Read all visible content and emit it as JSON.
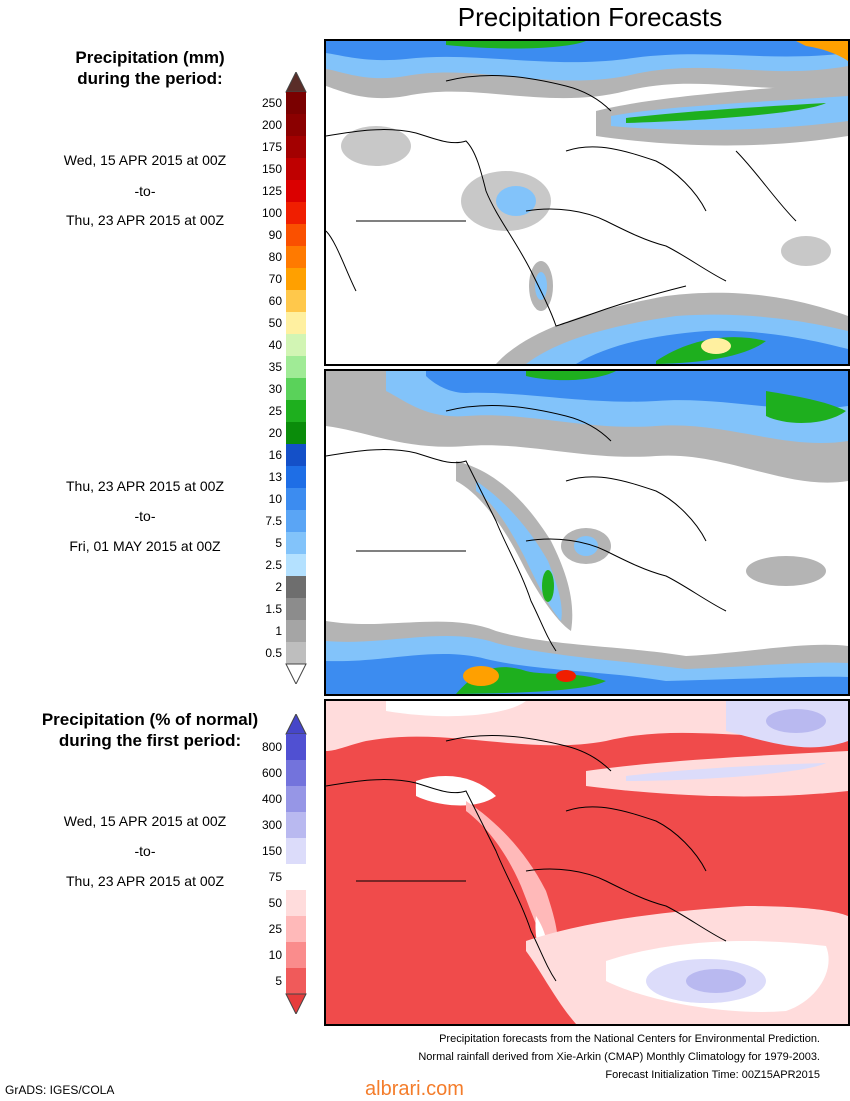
{
  "page_title": "Precipitation Forecasts",
  "section1": {
    "title_line1": "Precipitation (mm)",
    "title_line2": "during the period:",
    "period_a": {
      "start": "Wed, 15 APR 2015 at 00Z",
      "sep": "-to-",
      "end": "Thu, 23 APR 2015 at 00Z"
    },
    "period_b": {
      "start": "Thu, 23 APR 2015 at 00Z",
      "sep": "-to-",
      "end": "Fri, 01 MAY 2015 at 00Z"
    },
    "colorbar": {
      "labels": [
        "250",
        "200",
        "175",
        "150",
        "125",
        "100",
        "90",
        "80",
        "70",
        "60",
        "50",
        "40",
        "35",
        "30",
        "25",
        "20",
        "16",
        "13",
        "10",
        "7.5",
        "5",
        "2.5",
        "2",
        "1.5",
        "1",
        "0.5"
      ],
      "colors": [
        "#7a0000",
        "#8b0000",
        "#a30000",
        "#bf0000",
        "#db0000",
        "#f01e00",
        "#fa5000",
        "#ff7a00",
        "#ffa000",
        "#ffc84b",
        "#fff0a0",
        "#d2f5b4",
        "#a0eb96",
        "#5ad25a",
        "#1eaf1e",
        "#0a8c0a",
        "#1450c8",
        "#1e6ee6",
        "#3c8cf0",
        "#5aa5f5",
        "#82c3fa",
        "#b4e1ff",
        "#6e6e6e",
        "#8c8c8c",
        "#a5a5a5",
        "#bebebe"
      ],
      "top_arrow_color": "#5a2d28",
      "bottom_arrow_color": "#ffffff"
    }
  },
  "section2": {
    "title_line1": "Precipitation (% of normal)",
    "title_line2": "during the first period:",
    "period": {
      "start": "Wed, 15 APR 2015 at 00Z",
      "sep": "-to-",
      "end": "Thu, 23 APR 2015 at 00Z"
    },
    "colorbar": {
      "labels": [
        "800",
        "600",
        "400",
        "300",
        "150",
        "75",
        "50",
        "25",
        "10",
        "5"
      ],
      "colors": [
        "#5050d2",
        "#7373dc",
        "#9696e6",
        "#b9b9f0",
        "#dcdcfa",
        "#ffffff",
        "#ffdcdc",
        "#ffb9b9",
        "#fa8c8c",
        "#f05a5a"
      ],
      "top_arrow_color": "#4646c8",
      "bottom_arrow_color": "#e63c3c"
    }
  },
  "footer": {
    "line1": "Precipitation forecasts from the National Centers for Environmental Prediction.",
    "line2": "Normal rainfall derived from Xie-Arkin (CMAP) Monthly Climatology for 1979-2003.",
    "line3": "Forecast Initialization Time: 00Z15APR2015"
  },
  "credit": "GrADS: IGES/COLA",
  "watermark": "albrari.com"
}
